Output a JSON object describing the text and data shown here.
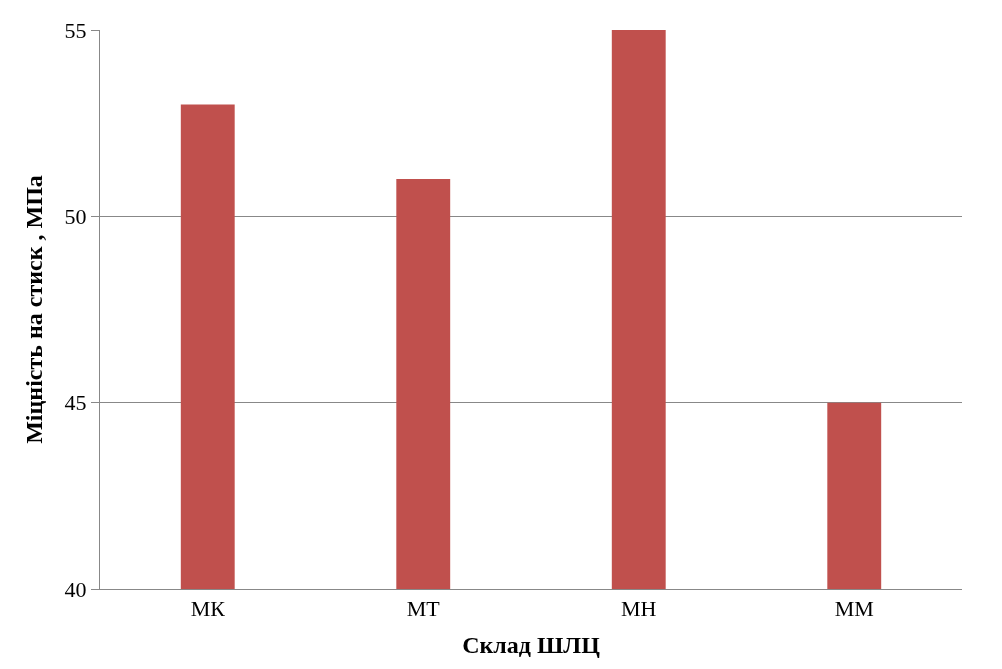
{
  "chart_data": {
    "type": "bar",
    "xlabel": "Склад ШЛЦ",
    "ylabel": "Міцність на стиск , МПа",
    "categories": [
      "МК",
      "МТ",
      "МН",
      "ММ"
    ],
    "values": [
      53,
      51,
      55,
      45
    ],
    "color": "#c0504d",
    "ylim": [
      40,
      55
    ],
    "yticks": [
      40,
      45,
      50,
      55
    ],
    "grid": "y"
  }
}
